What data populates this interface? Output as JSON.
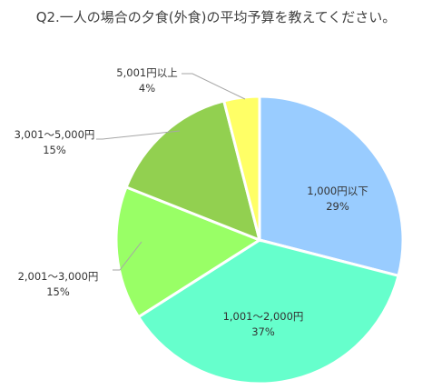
{
  "chart_data": {
    "type": "pie",
    "title": "Q2.一人の場合の夕食(外食)の平均予算を教えてください。",
    "slices": [
      {
        "label": "1,000円以下",
        "value": 29,
        "value_label": "29%",
        "color": "#99ccff"
      },
      {
        "label": "1,001～2,000円",
        "value": 37,
        "value_label": "37%",
        "color": "#66ffcc"
      },
      {
        "label": "2,001～3,000円",
        "value": 15,
        "value_label": "15%",
        "color": "#99ff66"
      },
      {
        "label": "3,001～5,000円",
        "value": 15,
        "value_label": "15%",
        "color": "#92d050"
      },
      {
        "label": "5,001円以上",
        "value": 4,
        "value_label": "4%",
        "color": "#ffff66"
      }
    ],
    "start": "12 o'clock",
    "direction": "clockwise",
    "legend": "none"
  }
}
